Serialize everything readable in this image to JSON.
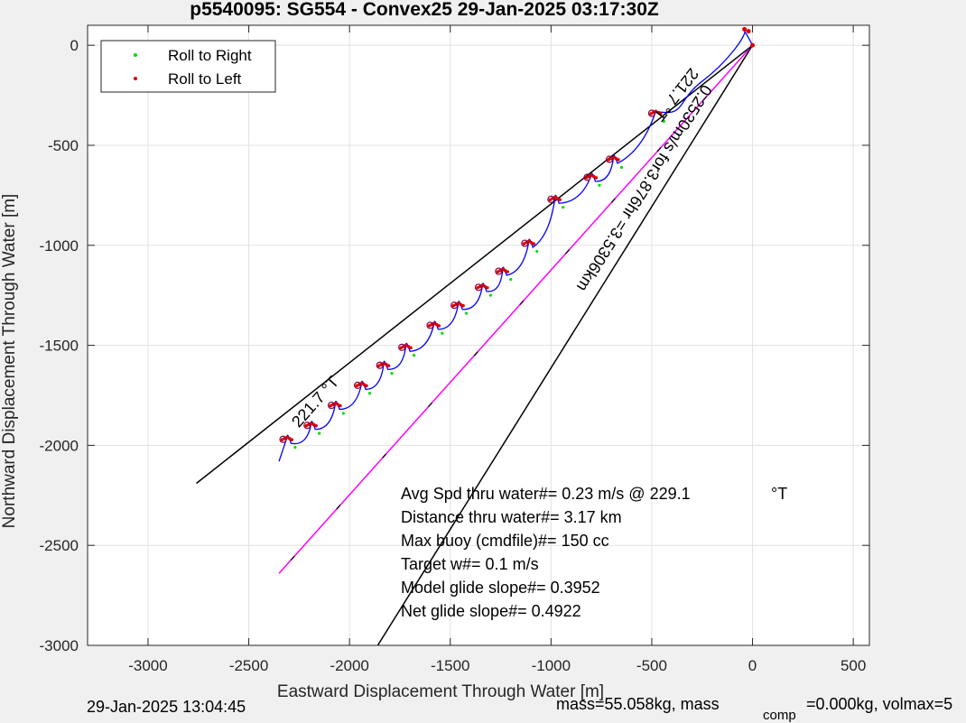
{
  "chart_data": {
    "type": "line",
    "title": "p5540095: SG554 - Convex25 29-Jan-2025 03:17:30Z",
    "xlabel": "Eastward Displacement Through Water [m]",
    "ylabel": "Northward Displacement Through Water [m]",
    "xlim": [
      -3300,
      580
    ],
    "ylim": [
      -3000,
      100
    ],
    "xticks": [
      -3000,
      -2500,
      -2000,
      -1500,
      -1000,
      -500,
      0,
      500
    ],
    "yticks": [
      0,
      -500,
      -1000,
      -1500,
      -2000,
      -2500,
      -3000
    ],
    "xtick_labels": [
      "-3000",
      "-2500",
      "-2000",
      "-1500",
      "-1000",
      "-500",
      "0",
      "500"
    ],
    "ytick_labels": [
      "0",
      "-500",
      "-1000",
      "-1500",
      "-2000",
      "-2500",
      "-3000"
    ],
    "grid": true,
    "legend_position": "top-left",
    "legend": [
      {
        "label": "Roll to Right",
        "color": "#00dd00"
      },
      {
        "label": "Roll to Left",
        "color": "#dd0000"
      }
    ],
    "colors": {
      "track": "#0000ff",
      "heading_line": "#ff00ff",
      "reference_lines": "#000000",
      "dive_marker": "#8b0050"
    },
    "track": {
      "start": [
        0,
        0
      ],
      "end": [
        -2350,
        -2080
      ],
      "dive_count": 17
    },
    "dive_tops": [
      [
        -480,
        -330
      ],
      [
        -690,
        -560
      ],
      [
        -800,
        -650
      ],
      [
        -980,
        -760
      ],
      [
        -1110,
        -980
      ],
      [
        -1240,
        -1120
      ],
      [
        -1340,
        -1200
      ],
      [
        -1460,
        -1290
      ],
      [
        -1580,
        -1390
      ],
      [
        -1720,
        -1500
      ],
      [
        -1830,
        -1590
      ],
      [
        -1940,
        -1690
      ],
      [
        -2070,
        -1790
      ],
      [
        -2190,
        -1890
      ],
      [
        -2310,
        -1960
      ]
    ],
    "reference_lines": [
      {
        "from": [
          0,
          0
        ],
        "to": [
          -2760,
          -2190
        ]
      },
      {
        "from": [
          0,
          0
        ],
        "to": [
          -1860,
          -3000
        ]
      }
    ],
    "heading_line": {
      "from": [
        0,
        0
      ],
      "to": [
        -2350,
        -2640
      ]
    },
    "line_annotations": [
      {
        "text": "221.7 °T",
        "at": [
          -2150,
          -1800
        ],
        "angle_deg": -48.3
      },
      {
        "text": "221.7 °T",
        "at": [
          -400,
          -230
        ],
        "angle_deg": 128
      },
      {
        "text": "0.2530m/s for3.876hr =3.5306km",
        "at": [
          -560,
          -700
        ],
        "angle_deg": 122
      }
    ],
    "annotations": [
      "Avg Spd thru water#=  0.23 m/s @ 229.1",
      "Distance thru water#=  3.17 km",
      "Max buoy (cmdfile)#= 150 cc",
      "Target w#= 0.1 m/s",
      "Model glide slope#= 0.3952",
      "Net glide slope#= 0.4922"
    ],
    "annotation_unit": "°T"
  },
  "footer": {
    "left": "29-Jan-2025 13:04:45",
    "right_prefix": "mass=55.058kg, mass",
    "right_subscript": "comp",
    "right_suffix": "=0.000kg, volmax=5"
  }
}
